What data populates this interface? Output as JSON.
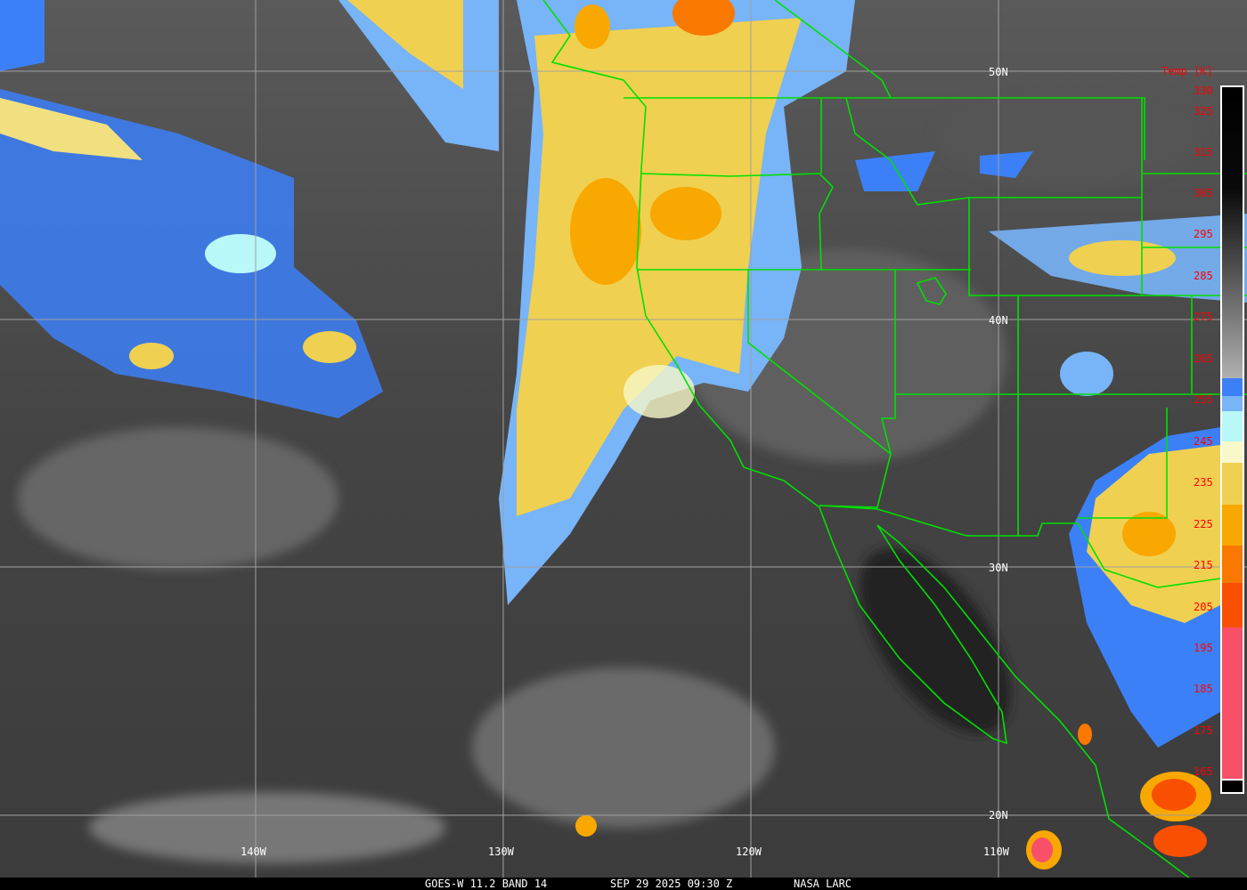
{
  "footer": {
    "satellite": "GOES-W 11.2 BAND 14",
    "datetime": "SEP 29 2025 09:30 Z",
    "credit": "NASA LARC"
  },
  "latitude_labels": [
    "50N",
    "40N",
    "30N",
    "20N"
  ],
  "longitude_labels": [
    "140W",
    "130W",
    "120W",
    "110W"
  ],
  "colorbar": {
    "title": "Temp [K]",
    "ticks": [
      "330",
      "325",
      "315",
      "305",
      "295",
      "285",
      "275",
      "265",
      "255",
      "245",
      "235",
      "225",
      "215",
      "205",
      "195",
      "185",
      "175",
      "165"
    ],
    "colors": {
      "warm_top": "#000000",
      "gray_mid": "#808080",
      "gray_light": "#a8a8a8",
      "blue": "#3c80f8",
      "light_blue": "#78b4f8",
      "cyan": "#b8f8f8",
      "cream": "#f8f8c8",
      "yellow": "#f0d050",
      "orange": "#f8a800",
      "dark_orange": "#f87800",
      "red_orange": "#f85000",
      "pink": "#f85068"
    }
  },
  "overlay_colors": {
    "borders": "#00e000",
    "grid": "#a0a0a0",
    "labels": "#ffffff",
    "colorbar_labels": "#ff0000"
  }
}
